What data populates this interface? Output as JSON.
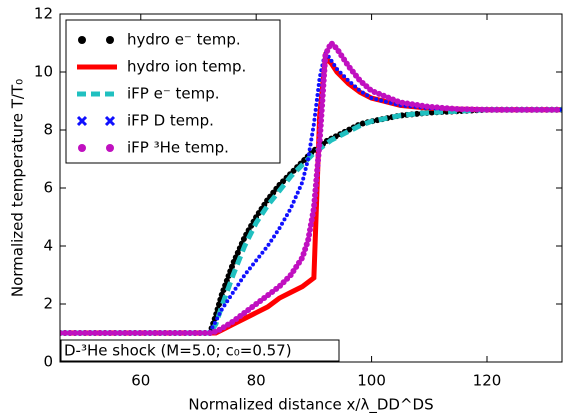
{
  "chart_data": {
    "type": "line",
    "xlabel": "Normalized distance x/λ_DD^DS",
    "ylabel": "Normalized temperature T/T₀",
    "annotation": "D-³He shock (M=5.0; c₀=0.57)",
    "x": [
      46,
      50,
      55,
      60,
      65,
      70,
      72,
      73,
      74,
      76,
      78,
      80,
      82,
      84,
      86,
      88,
      89,
      90,
      91,
      92,
      93,
      94,
      96,
      98,
      100,
      105,
      110,
      115,
      120,
      125,
      130,
      133
    ],
    "xlim": [
      46,
      133
    ],
    "xticks": [
      60,
      80,
      100,
      120
    ],
    "ylim": [
      0,
      12
    ],
    "yticks": [
      0,
      2,
      4,
      6,
      8,
      10,
      12
    ],
    "legend": "upper left",
    "series": [
      {
        "name": "hydro e⁻ temp.",
        "color": "#000000",
        "marker": "o",
        "values": [
          1,
          1,
          1,
          1,
          1,
          1,
          1,
          1.6,
          2.3,
          3.4,
          4.3,
          5.0,
          5.6,
          6.1,
          6.5,
          6.9,
          7.1,
          7.3,
          7.4,
          7.6,
          7.7,
          7.8,
          8.0,
          8.2,
          8.3,
          8.5,
          8.6,
          8.65,
          8.7,
          8.7,
          8.7,
          8.7
        ]
      },
      {
        "name": "hydro ion temp.",
        "color": "#ff0000",
        "marker": "solid",
        "values": [
          1,
          1,
          1,
          1,
          1,
          1,
          1,
          1,
          1.1,
          1.3,
          1.5,
          1.7,
          1.9,
          2.2,
          2.4,
          2.6,
          2.75,
          2.9,
          8.5,
          10.5,
          10.3,
          10.0,
          9.6,
          9.3,
          9.1,
          8.85,
          8.75,
          8.72,
          8.7,
          8.7,
          8.7,
          8.7
        ]
      },
      {
        "name": "iFP e⁻ temp.",
        "color": "#20c0c0",
        "marker": "dash",
        "values": [
          1,
          1,
          1,
          1,
          1,
          1,
          1,
          1.3,
          1.9,
          3.0,
          4.0,
          4.8,
          5.4,
          5.9,
          6.4,
          6.8,
          7.0,
          7.2,
          7.35,
          7.5,
          7.65,
          7.75,
          7.95,
          8.15,
          8.3,
          8.5,
          8.6,
          8.65,
          8.7,
          8.7,
          8.7,
          8.7
        ]
      },
      {
        "name": "iFP D temp.",
        "color": "#1010ff",
        "marker": "x",
        "values": [
          1,
          1,
          1,
          1,
          1,
          1,
          1.05,
          1.4,
          1.8,
          2.4,
          3.0,
          3.5,
          4.0,
          4.6,
          5.3,
          6.2,
          7.0,
          8.2,
          9.8,
          10.7,
          10.4,
          10.1,
          9.7,
          9.35,
          9.1,
          8.85,
          8.75,
          8.72,
          8.7,
          8.7,
          8.7,
          8.7
        ]
      },
      {
        "name": "iFP ³He temp.",
        "color": "#c010c0",
        "marker": "o",
        "values": [
          1,
          1,
          1,
          1,
          1,
          1,
          1,
          1.05,
          1.15,
          1.4,
          1.7,
          2.0,
          2.3,
          2.6,
          3.0,
          3.6,
          4.2,
          5.3,
          7.6,
          10.6,
          11.0,
          10.8,
          10.2,
          9.7,
          9.35,
          8.95,
          8.8,
          8.72,
          8.7,
          8.7,
          8.7,
          8.7
        ]
      }
    ]
  }
}
